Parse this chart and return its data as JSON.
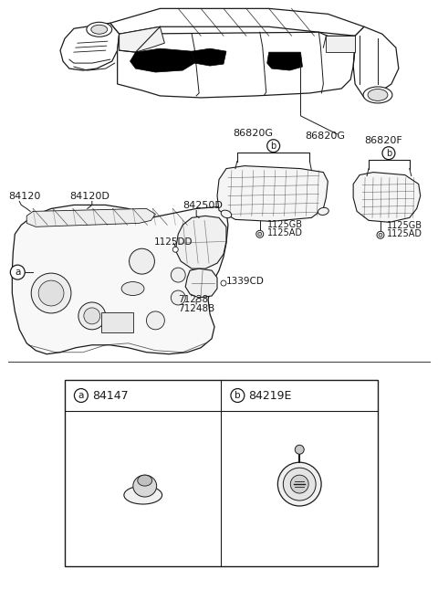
{
  "bg_color": "#ffffff",
  "line_color": "#1a1a1a",
  "fig_width": 4.8,
  "fig_height": 6.46,
  "dpi": 100,
  "labels": {
    "86820G": "86820G",
    "86820F": "86820F",
    "84120": "84120",
    "84120D": "84120D",
    "84250D": "84250D",
    "1125DD": "1125DD",
    "1339CD": "1339CD",
    "71238": "71238",
    "71248B": "71248B",
    "1125GB_1": "1125GB",
    "1125AD_1": "1125AD",
    "1125GB_2": "1125GB",
    "1125AD_2": "1125AD",
    "part_a": "84147",
    "part_b": "84219E"
  }
}
